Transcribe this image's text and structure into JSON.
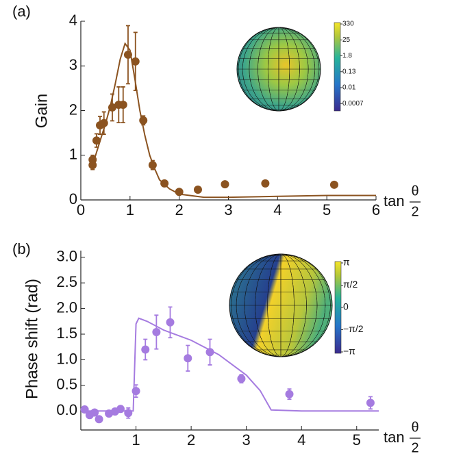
{
  "chart_data": [
    {
      "type": "scatter",
      "panel_label": "(a)",
      "y_label": "Gain",
      "x_label": {
        "prefix": "tan",
        "numerator": "θ",
        "denominator": "2"
      },
      "xlim": [
        0,
        6
      ],
      "xticks": [
        0,
        1,
        2,
        3,
        4,
        5,
        6
      ],
      "ylim": [
        0,
        4
      ],
      "yticks": [
        0,
        1,
        2,
        3,
        4
      ],
      "color": "#8b5320",
      "points": {
        "x": [
          0.24,
          0.24,
          0.32,
          0.39,
          0.47,
          0.64,
          0.77,
          0.86,
          0.96,
          1.11,
          1.27,
          1.46,
          1.7,
          2.0,
          2.38,
          2.93,
          3.75,
          5.15
        ],
        "values": [
          0.9,
          0.78,
          1.33,
          1.67,
          1.72,
          2.07,
          2.13,
          2.13,
          3.25,
          3.1,
          1.78,
          0.78,
          0.37,
          0.18,
          0.23,
          0.35,
          0.37,
          0.34
        ],
        "errors": [
          0.1,
          0.1,
          0.15,
          0.2,
          0.25,
          0.3,
          0.4,
          0.4,
          0.65,
          0.65,
          0.1,
          0.1,
          0.05,
          0.05,
          0.05,
          0.05,
          0.05,
          0.05
        ]
      },
      "fit": {
        "x": [
          0.2,
          0.3,
          0.4,
          0.5,
          0.6,
          0.7,
          0.8,
          0.9,
          1.0,
          1.1,
          1.2,
          1.3,
          1.4,
          1.5,
          1.6,
          1.8,
          2.0,
          2.5,
          3,
          4,
          5,
          6
        ],
        "values": [
          0.7,
          1.0,
          1.35,
          1.7,
          2.1,
          2.6,
          3.15,
          3.5,
          3.35,
          2.7,
          2.0,
          1.45,
          1.0,
          0.7,
          0.45,
          0.25,
          0.13,
          0.06,
          0.06,
          0.08,
          0.1,
          0.1
        ]
      },
      "colorbar_labels": [
        "330",
        "25",
        "1.8",
        "0.13",
        "0.01",
        "0.0007"
      ]
    },
    {
      "type": "scatter",
      "panel_label": "(b)",
      "y_label": "Phase shift (rad)",
      "x_label": {
        "prefix": "tan",
        "numerator": "θ",
        "denominator": "2"
      },
      "xlim": [
        0,
        5.4
      ],
      "xticks": [
        1,
        2,
        3,
        4,
        5
      ],
      "ylim": [
        -0.37,
        3.13
      ],
      "yticks": [
        {
          "value": 0,
          "label": "0.0"
        },
        0.5,
        {
          "value": 1,
          "label": "1.0"
        },
        1.5,
        {
          "value": 2,
          "label": "2.0"
        },
        2.5,
        {
          "value": 3,
          "label": "3.0"
        }
      ],
      "color": "#a57be0",
      "points": {
        "x": [
          0.07,
          0.16,
          0.25,
          0.33,
          0.51,
          0.62,
          0.72,
          0.86,
          1.0,
          1.17,
          1.37,
          1.62,
          1.94,
          2.34,
          2.91,
          3.78,
          5.25
        ],
        "values": [
          0.03,
          -0.08,
          -0.03,
          -0.16,
          -0.05,
          -0.01,
          0.04,
          -0.04,
          0.39,
          1.2,
          1.54,
          1.73,
          1.03,
          1.15,
          0.63,
          0.33,
          0.16
        ],
        "errors": [
          0.06,
          0.06,
          0.06,
          0.06,
          0.06,
          0.06,
          0.06,
          0.1,
          0.12,
          0.2,
          0.33,
          0.3,
          0.25,
          0.25,
          0.08,
          0.1,
          0.12
        ]
      },
      "fit": {
        "x": [
          0.0,
          0.5,
          0.95,
          1.0,
          1.05,
          1.2,
          1.5,
          2.0,
          2.5,
          3.0,
          3.25,
          3.45,
          4,
          5,
          5.4
        ],
        "values": [
          0,
          0,
          0,
          1.7,
          1.81,
          1.75,
          1.58,
          1.38,
          1.1,
          0.7,
          0.4,
          0.02,
          0.0,
          0.0,
          0.0
        ]
      },
      "colorbar_labels": [
        "π",
        "π/2",
        "0",
        "−π/2",
        "−π"
      ]
    }
  ]
}
